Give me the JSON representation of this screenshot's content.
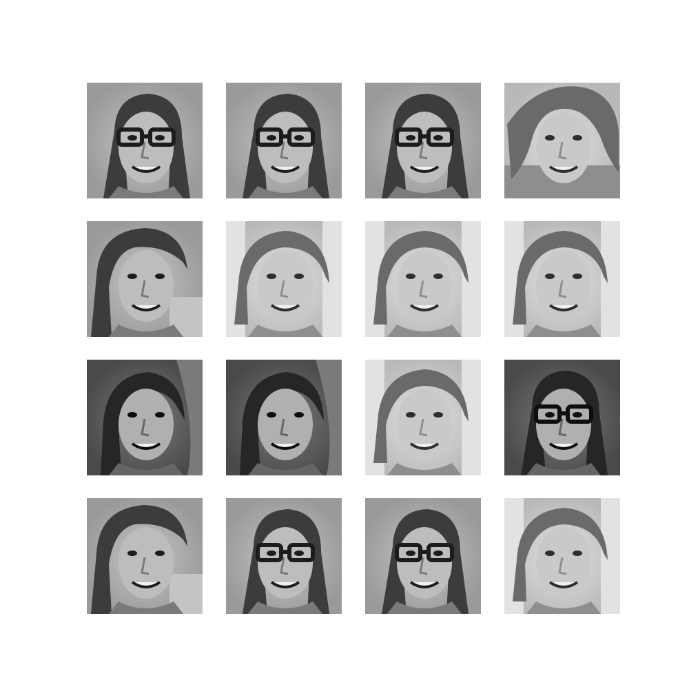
{
  "figure": {
    "rows": 4,
    "cols": 4,
    "samples": [
      {
        "variant": "glasses-dark-hair",
        "tone": "mid"
      },
      {
        "variant": "glasses-dark-hair",
        "tone": "mid"
      },
      {
        "variant": "glasses-dark-hair",
        "tone": "mid"
      },
      {
        "variant": "open-smile-curly-hair",
        "tone": "light"
      },
      {
        "variant": "side-part-dark",
        "tone": "mid"
      },
      {
        "variant": "light-hair-textured-bg",
        "tone": "light"
      },
      {
        "variant": "light-hair-textured-bg",
        "tone": "light"
      },
      {
        "variant": "light-hair-textured-bg",
        "tone": "light"
      },
      {
        "variant": "dark-bg-smile",
        "tone": "dark"
      },
      {
        "variant": "dark-bg-smile",
        "tone": "dark"
      },
      {
        "variant": "light-hair-textured-bg",
        "tone": "light"
      },
      {
        "variant": "glasses-dark-hair",
        "tone": "dark"
      },
      {
        "variant": "side-part-dark",
        "tone": "mid"
      },
      {
        "variant": "glasses-dark-hair",
        "tone": "mid"
      },
      {
        "variant": "glasses-dark-hair",
        "tone": "mid"
      },
      {
        "variant": "light-hair-textured-bg",
        "tone": "light"
      }
    ]
  }
}
